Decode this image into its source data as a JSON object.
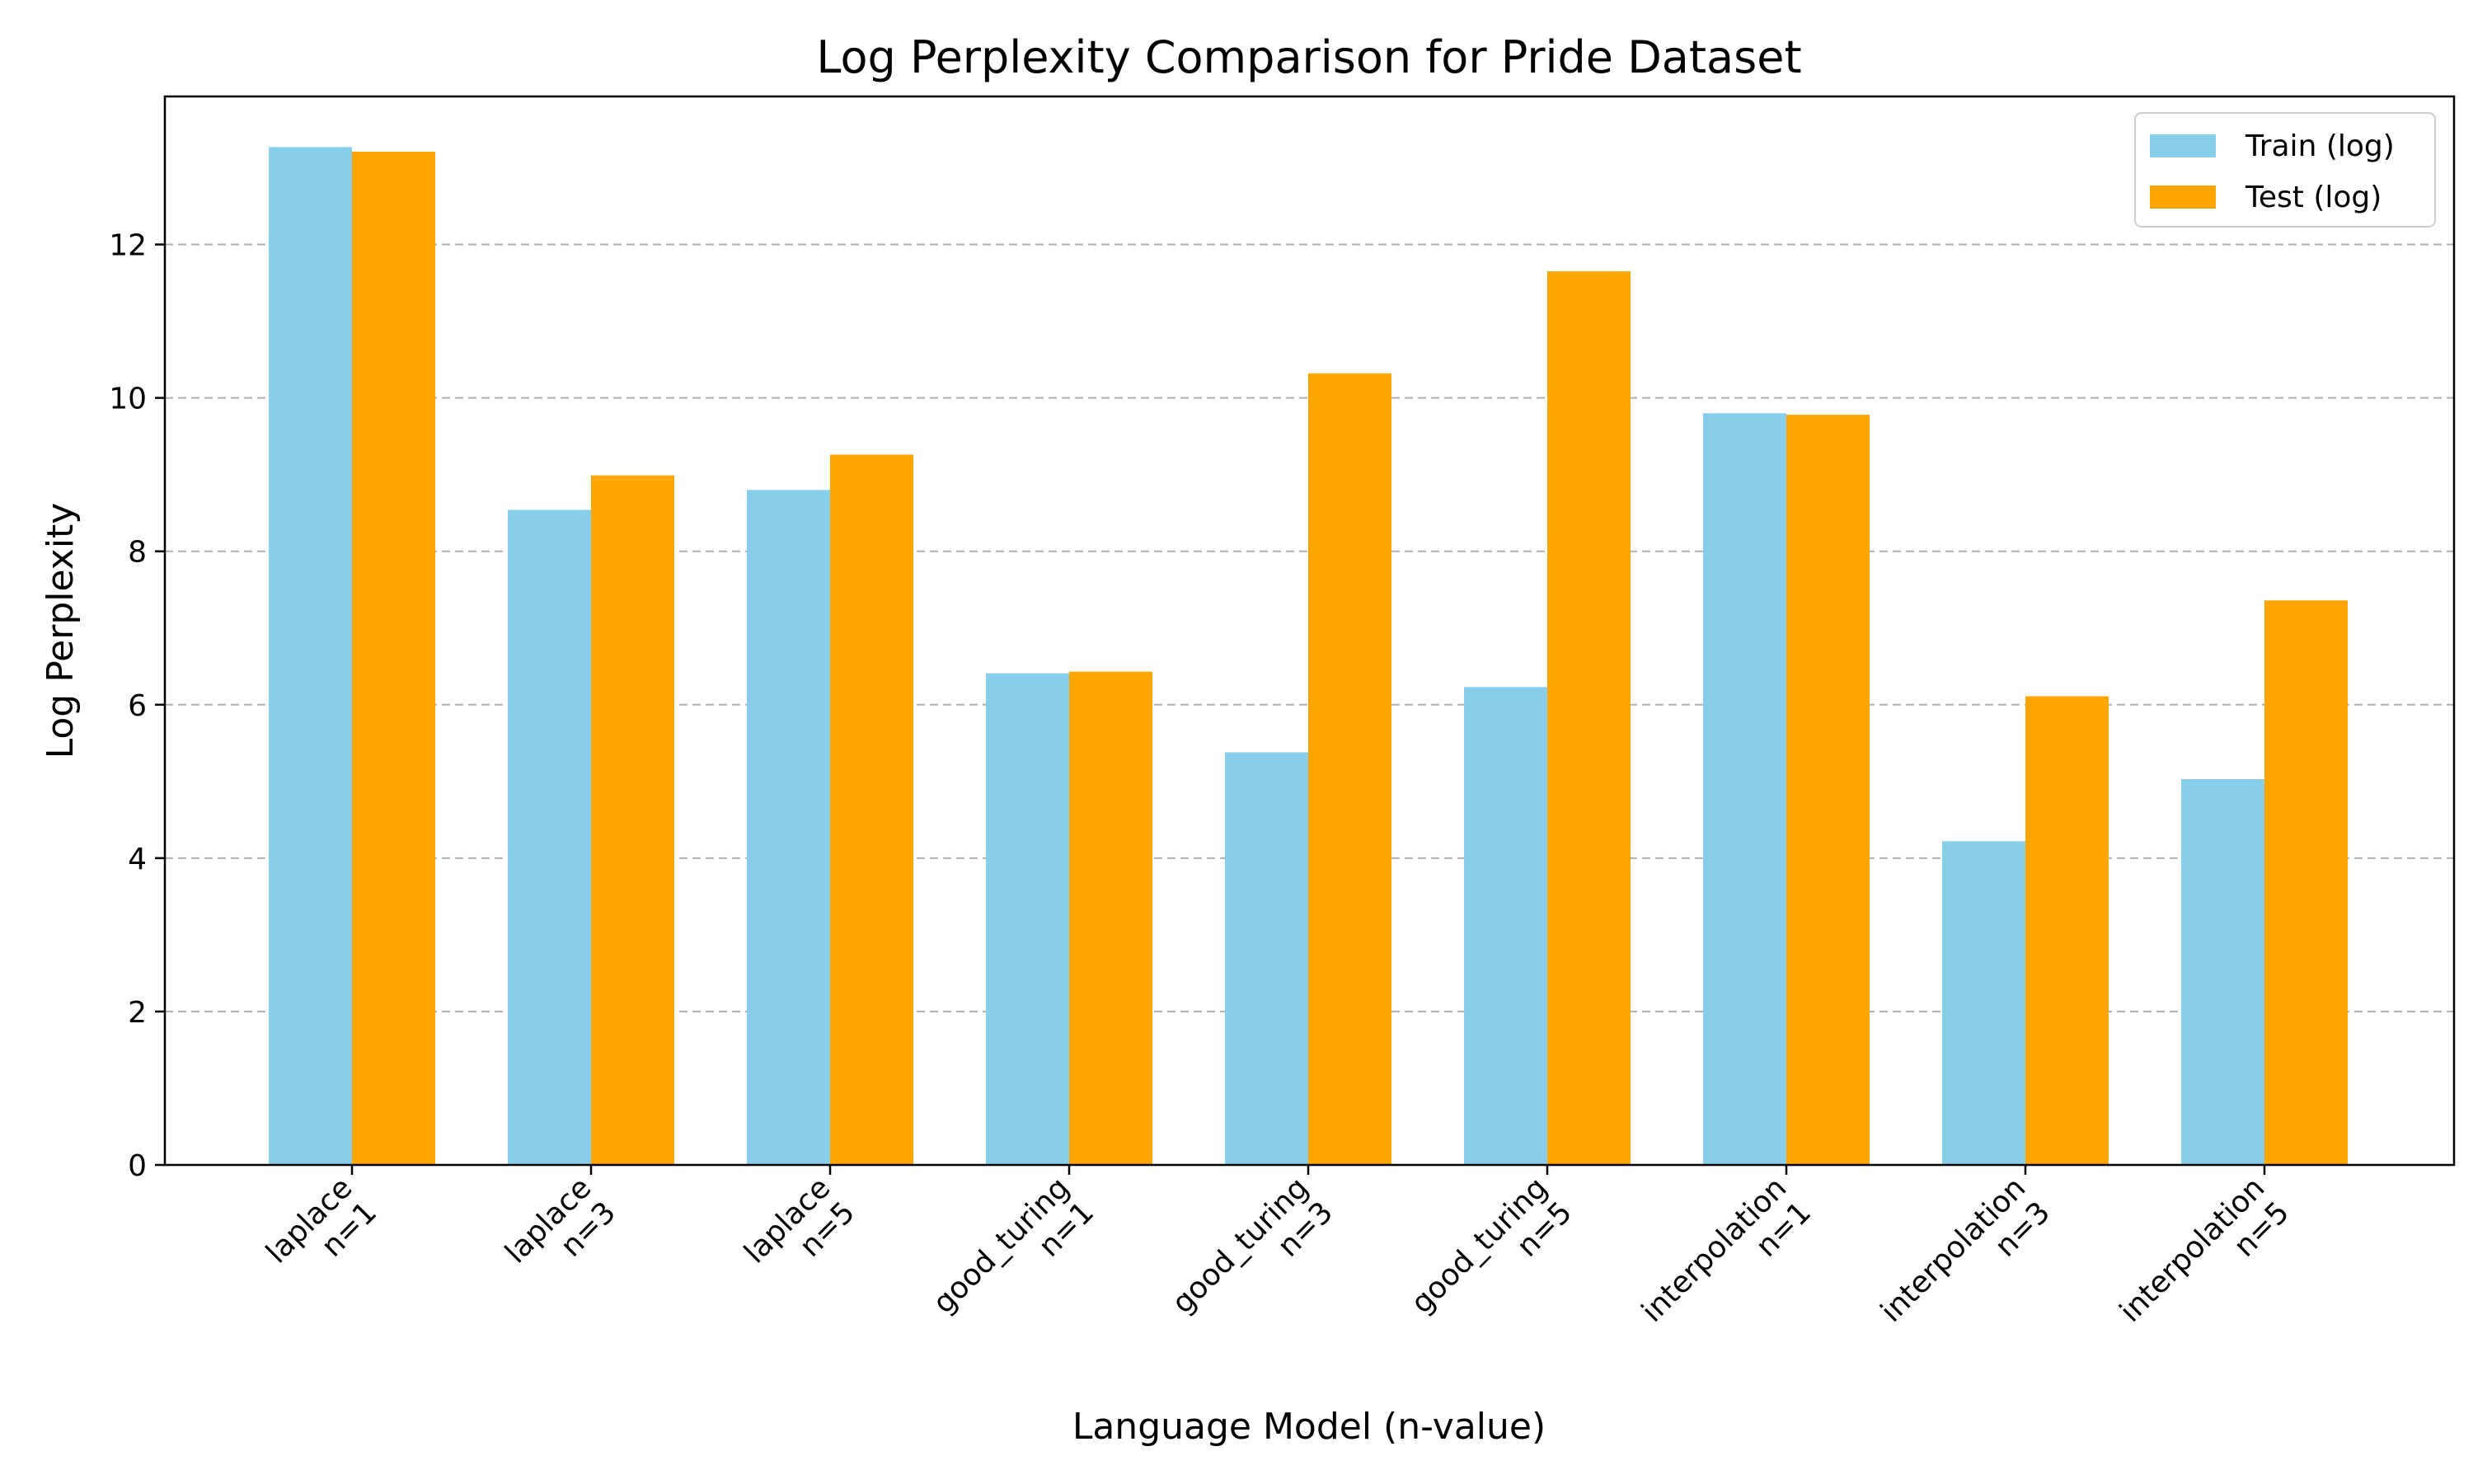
{
  "chart_data": {
    "type": "bar",
    "title": "Log Perplexity Comparison for Pride Dataset",
    "xlabel": "Language Model (n-value)",
    "ylabel": "Log Perplexity",
    "categories": [
      [
        "laplace",
        "n=1"
      ],
      [
        "laplace",
        "n=3"
      ],
      [
        "laplace",
        "n=5"
      ],
      [
        "good_turing",
        "n=1"
      ],
      [
        "good_turing",
        "n=3"
      ],
      [
        "good_turing",
        "n=5"
      ],
      [
        "interpolation",
        "n=1"
      ],
      [
        "interpolation",
        "n=3"
      ],
      [
        "interpolation",
        "n=5"
      ]
    ],
    "series": [
      {
        "name": "Train (log)",
        "color": "#87CEEB",
        "values": [
          13.27,
          8.54,
          8.8,
          6.41,
          5.38,
          6.23,
          9.8,
          4.22,
          5.03
        ]
      },
      {
        "name": "Test (log)",
        "color": "#FFA500",
        "values": [
          13.21,
          8.99,
          9.26,
          6.43,
          10.32,
          11.65,
          9.78,
          6.11,
          7.36
        ]
      }
    ],
    "ylim": [
      0,
      13.93
    ],
    "yticks": [
      0,
      2,
      4,
      6,
      8,
      10,
      12
    ],
    "grid": "y-dashed",
    "legend_position": "top-right"
  }
}
